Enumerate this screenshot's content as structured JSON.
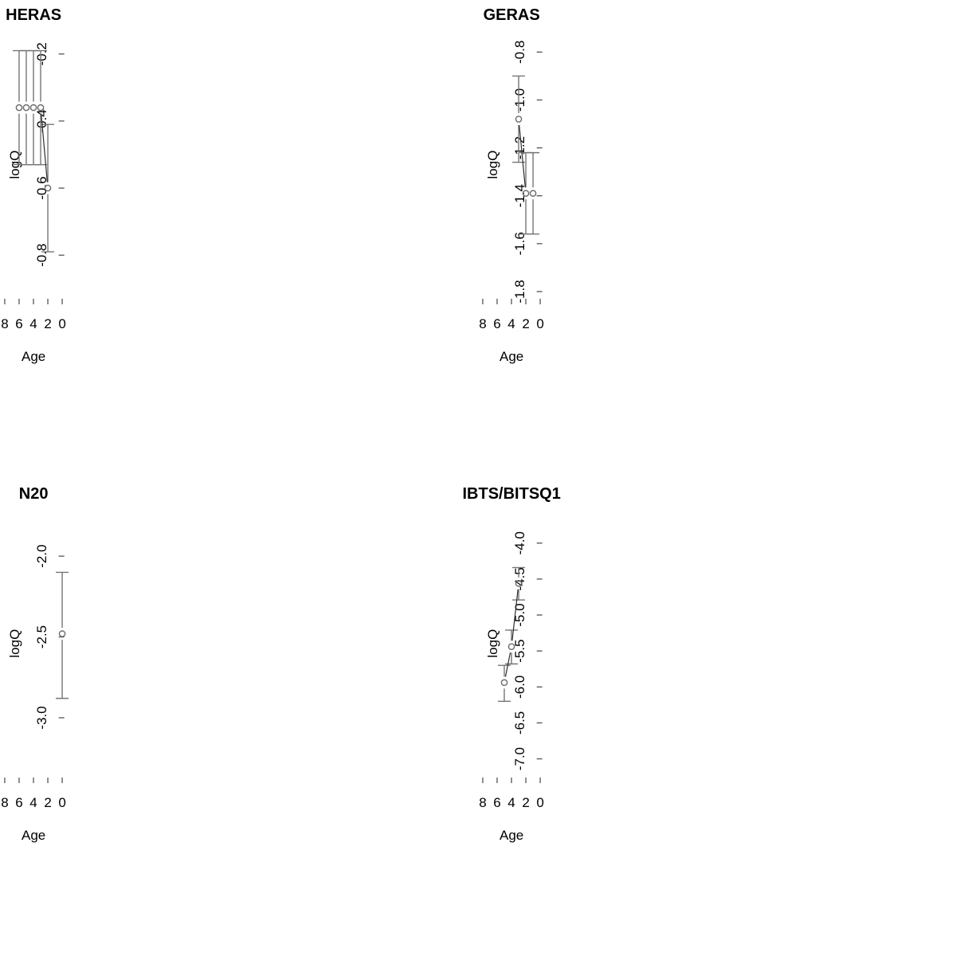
{
  "figure": {
    "kind": "r-multipanel-errorbar-figure",
    "rows": 2,
    "cols": 2,
    "background": "#ffffff",
    "colors": {
      "box_and_ticks": "#545454",
      "error_bars": "#757575",
      "point_circles": "#6a6a6a",
      "connecting_lines": "#2e2e2e",
      "text": "#000000"
    }
  },
  "chart_data": [
    {
      "type": "line",
      "title": "HERAS",
      "xlabel": "Age",
      "ylabel": "logQ",
      "x": [
        2,
        3,
        4,
        5,
        6
      ],
      "y": [
        -0.6,
        -0.36,
        -0.36,
        -0.36,
        -0.36
      ],
      "y_lower": [
        -0.79,
        -0.53,
        -0.53,
        -0.53,
        -0.53
      ],
      "y_upper": [
        -0.41,
        -0.19,
        -0.19,
        -0.19,
        -0.19
      ],
      "xlim": [
        -0.29,
        8.26
      ],
      "ylim": [
        -0.93,
        -0.13
      ],
      "xticks": [
        0,
        2,
        4,
        6,
        8
      ],
      "xtick_labels": [
        "0",
        "2",
        "4",
        "6",
        "8"
      ],
      "yticks": [
        -0.2,
        -0.4,
        -0.6,
        -0.8
      ],
      "ytick_labels": [
        "-0.2",
        "-0.4",
        "-0.6",
        "-0.8"
      ],
      "grid": false,
      "legend": null,
      "marker": "open-circle",
      "error_bars": true
    },
    {
      "type": "line",
      "title": "GERAS",
      "xlabel": "Age",
      "ylabel": "logQ",
      "x": [
        1,
        2,
        3
      ],
      "y": [
        -1.39,
        -1.39,
        -1.08
      ],
      "y_lower": [
        -1.56,
        -1.56,
        -1.26
      ],
      "y_upper": [
        -1.22,
        -1.22,
        -0.9
      ],
      "xlim": [
        -0.29,
        8.26
      ],
      "ylim": [
        -1.83,
        -0.71
      ],
      "xticks": [
        0,
        2,
        4,
        6,
        8
      ],
      "xtick_labels": [
        "0",
        "2",
        "4",
        "6",
        "8"
      ],
      "yticks": [
        -0.8,
        -1.0,
        -1.2,
        -1.4,
        -1.6,
        -1.8
      ],
      "ytick_labels": [
        "-0.8",
        "-1.0",
        "-1.2",
        "-1.4",
        "-1.6",
        "-1.8"
      ],
      "grid": false,
      "legend": null,
      "marker": "open-circle",
      "error_bars": true
    },
    {
      "type": "line",
      "title": "N20",
      "xlabel": "Age",
      "ylabel": "logQ",
      "x": [
        0
      ],
      "y": [
        -2.48
      ],
      "y_lower": [
        -2.88
      ],
      "y_upper": [
        -2.1
      ],
      "xlim": [
        -0.29,
        8.26
      ],
      "ylim": [
        -3.37,
        -1.71
      ],
      "xticks": [
        0,
        2,
        4,
        6,
        8
      ],
      "xtick_labels": [
        "0",
        "2",
        "4",
        "6",
        "8"
      ],
      "yticks": [
        -2.0,
        -2.5,
        -3.0
      ],
      "ytick_labels": [
        "-2.0",
        "-2.5",
        "-3.0"
      ],
      "grid": false,
      "legend": null,
      "marker": "open-circle",
      "error_bars": true
    },
    {
      "type": "line",
      "title": "IBTS/BITSQ1",
      "xlabel": "Age",
      "ylabel": "logQ",
      "x": [
        3,
        4,
        5
      ],
      "y": [
        -4.56,
        -5.44,
        -5.94
      ],
      "y_lower": [
        -4.79,
        -5.68,
        -6.2
      ],
      "y_upper": [
        -4.34,
        -5.21,
        -5.7
      ],
      "xlim": [
        -0.29,
        8.26
      ],
      "ylim": [
        -7.26,
        -3.53
      ],
      "xticks": [
        0,
        2,
        4,
        6,
        8
      ],
      "xtick_labels": [
        "0",
        "2",
        "4",
        "6",
        "8"
      ],
      "yticks": [
        -4.0,
        -4.5,
        -5.0,
        -5.5,
        -6.0,
        -6.5,
        -7.0
      ],
      "ytick_labels": [
        "-4.0",
        "-4.5",
        "-5.0",
        "-5.5",
        "-6.0",
        "-6.5",
        "-7.0"
      ],
      "grid": false,
      "legend": null,
      "marker": "open-circle",
      "error_bars": true
    }
  ]
}
